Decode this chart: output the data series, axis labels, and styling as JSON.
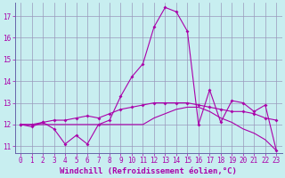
{
  "xlabel": "Windchill (Refroidissement éolien,°C)",
  "bg_color": "#c8eef0",
  "line_color": "#aa00aa",
  "grid_color": "#9999bb",
  "spine_color": "#6666aa",
  "xlim": [
    -0.5,
    23.5
  ],
  "ylim": [
    10.7,
    17.6
  ],
  "yticks": [
    11,
    12,
    13,
    14,
    15,
    16,
    17
  ],
  "xticks": [
    0,
    1,
    2,
    3,
    4,
    5,
    6,
    7,
    8,
    9,
    10,
    11,
    12,
    13,
    14,
    15,
    16,
    17,
    18,
    19,
    20,
    21,
    22,
    23
  ],
  "line1_x": [
    0,
    1,
    2,
    3,
    4,
    5,
    6,
    7,
    8,
    9,
    10,
    11,
    12,
    13,
    14,
    15,
    16,
    17,
    18,
    19,
    20,
    21,
    22,
    23
  ],
  "line1_y": [
    12.0,
    11.9,
    12.1,
    11.8,
    11.1,
    11.5,
    11.1,
    12.0,
    12.2,
    13.3,
    14.2,
    14.8,
    16.5,
    17.4,
    17.2,
    16.3,
    12.0,
    13.6,
    12.1,
    13.1,
    13.0,
    12.6,
    12.9,
    10.8
  ],
  "line2_x": [
    0,
    1,
    2,
    3,
    4,
    5,
    6,
    7,
    8,
    9,
    10,
    11,
    12,
    13,
    14,
    15,
    16,
    17,
    18,
    19,
    20,
    21,
    22,
    23
  ],
  "line2_y": [
    12.0,
    12.0,
    12.1,
    12.2,
    12.2,
    12.3,
    12.4,
    12.3,
    12.5,
    12.7,
    12.8,
    12.9,
    13.0,
    13.0,
    13.0,
    13.0,
    12.9,
    12.8,
    12.7,
    12.6,
    12.6,
    12.5,
    12.3,
    12.2
  ],
  "line3_x": [
    0,
    1,
    2,
    3,
    4,
    5,
    6,
    7,
    8,
    9,
    10,
    11,
    12,
    13,
    14,
    15,
    16,
    17,
    18,
    19,
    20,
    21,
    22,
    23
  ],
  "line3_y": [
    12.0,
    12.0,
    12.0,
    12.0,
    12.0,
    12.0,
    12.0,
    12.0,
    12.0,
    12.0,
    12.0,
    12.0,
    12.3,
    12.5,
    12.7,
    12.8,
    12.8,
    12.6,
    12.3,
    12.1,
    11.8,
    11.6,
    11.3,
    10.8
  ],
  "markersize": 2.0,
  "linewidth": 0.8,
  "tick_fontsize": 5.5,
  "xlabel_fontsize": 6.5
}
